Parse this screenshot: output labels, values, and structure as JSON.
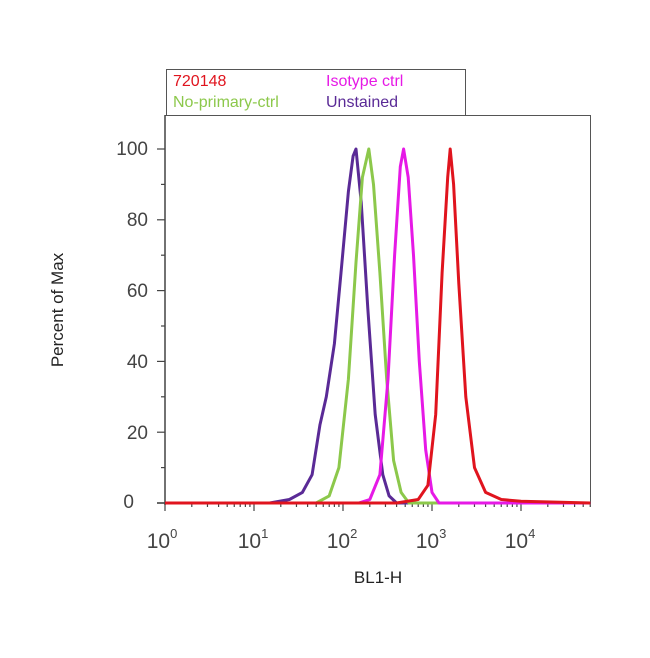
{
  "chart_data": {
    "type": "line",
    "title": "",
    "xlabel": "BL1-H",
    "ylabel": "Percent of Max",
    "xscale": "log",
    "xlim": [
      1,
      60000
    ],
    "ylim": [
      0,
      110
    ],
    "x_tick_labels": [
      "10^0",
      "10^1",
      "10^2",
      "10^3",
      "10^4"
    ],
    "y_tick_labels": [
      "0",
      "20",
      "40",
      "60",
      "80",
      "100"
    ],
    "legend_position": "top, above plot",
    "grid": false,
    "series": [
      {
        "name": "720148",
        "color": "#e0141e",
        "peak_x": 1600,
        "peak_y": 100,
        "x": [
          1,
          400,
          700,
          900,
          1100,
          1300,
          1500,
          1600,
          1750,
          2000,
          2400,
          3000,
          4000,
          6000,
          10000,
          60000
        ],
        "y": [
          0,
          0,
          1,
          5,
          25,
          65,
          92,
          100,
          90,
          62,
          30,
          10,
          3,
          1,
          0.5,
          0
        ]
      },
      {
        "name": "Isotype ctrl",
        "color": "#e619e6",
        "peak_x": 480,
        "peak_y": 100,
        "x": [
          1,
          150,
          200,
          260,
          320,
          380,
          440,
          480,
          540,
          620,
          720,
          850,
          1000,
          1200,
          60000
        ],
        "y": [
          0,
          0,
          1,
          8,
          35,
          70,
          95,
          100,
          92,
          70,
          40,
          15,
          3,
          0,
          0
        ]
      },
      {
        "name": "No-primary-ctrl",
        "color": "#8cc84b",
        "peak_x": 195,
        "peak_y": 100,
        "x": [
          1,
          50,
          70,
          90,
          115,
          140,
          165,
          195,
          220,
          260,
          310,
          370,
          450,
          550,
          60000
        ],
        "y": [
          0,
          0,
          2,
          10,
          35,
          68,
          92,
          100,
          90,
          65,
          35,
          12,
          3,
          0,
          0
        ]
      },
      {
        "name": "Unstained",
        "color": "#5a2a96",
        "peak_x": 140,
        "peak_y": 100,
        "x": [
          1,
          15,
          25,
          35,
          45,
          55,
          65,
          80,
          95,
          115,
          130,
          140,
          160,
          190,
          230,
          280,
          330,
          400,
          60000
        ],
        "y": [
          0,
          0,
          1,
          3,
          8,
          22,
          30,
          45,
          65,
          88,
          98,
          100,
          85,
          55,
          25,
          8,
          2,
          0,
          0
        ]
      }
    ]
  },
  "legend": {
    "items": [
      {
        "label": "720148",
        "color": "#e0141e"
      },
      {
        "label": "Isotype ctrl",
        "color": "#e619e6"
      },
      {
        "label": "No-primary-ctrl",
        "color": "#8cc84b"
      },
      {
        "label": "Unstained",
        "color": "#5a2a96"
      }
    ]
  },
  "axes": {
    "xlabel": "BL1-H",
    "ylabel": "Percent of Max",
    "yticks": [
      "100",
      "80",
      "60",
      "40",
      "20",
      "0"
    ],
    "xticks": [
      {
        "base": "10",
        "exp": "0"
      },
      {
        "base": "10",
        "exp": "1"
      },
      {
        "base": "10",
        "exp": "2"
      },
      {
        "base": "10",
        "exp": "3"
      },
      {
        "base": "10",
        "exp": "4"
      }
    ]
  }
}
